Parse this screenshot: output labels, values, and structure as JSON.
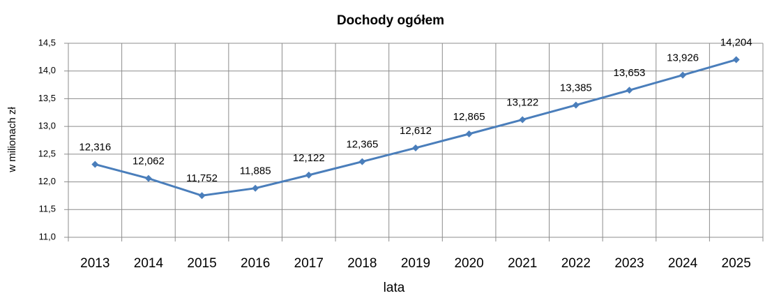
{
  "chart_data": {
    "type": "line",
    "title": "Dochody ogółem",
    "x_label": "lata",
    "y_label": "w milionach zł",
    "categories": [
      "2013",
      "2014",
      "2015",
      "2016",
      "2017",
      "2018",
      "2019",
      "2020",
      "2021",
      "2022",
      "2023",
      "2024",
      "2025"
    ],
    "series": [
      {
        "name": "Dochody ogółem",
        "color": "#4a7ebb",
        "values": [
          12.316,
          12.062,
          11.752,
          11.885,
          12.122,
          12.365,
          12.612,
          12.865,
          13.122,
          13.385,
          13.653,
          13.926,
          14.204
        ],
        "value_labels": [
          "12,316",
          "12,062",
          "11,752",
          "11,885",
          "12,122",
          "12,365",
          "12,612",
          "12,865",
          "13,122",
          "13,385",
          "13,653",
          "13,926",
          "14,204"
        ]
      }
    ],
    "ylim": [
      11.0,
      14.5
    ],
    "yticks": [
      {
        "value": 11.0,
        "label": "11,0"
      },
      {
        "value": 11.5,
        "label": "11,5"
      },
      {
        "value": 12.0,
        "label": "12,0"
      },
      {
        "value": 12.5,
        "label": "12,5"
      },
      {
        "value": 13.0,
        "label": "13,0"
      },
      {
        "value": 13.5,
        "label": "13,5"
      },
      {
        "value": 14.0,
        "label": "14,0"
      },
      {
        "value": 14.5,
        "label": "14,5"
      }
    ],
    "grid": true
  }
}
